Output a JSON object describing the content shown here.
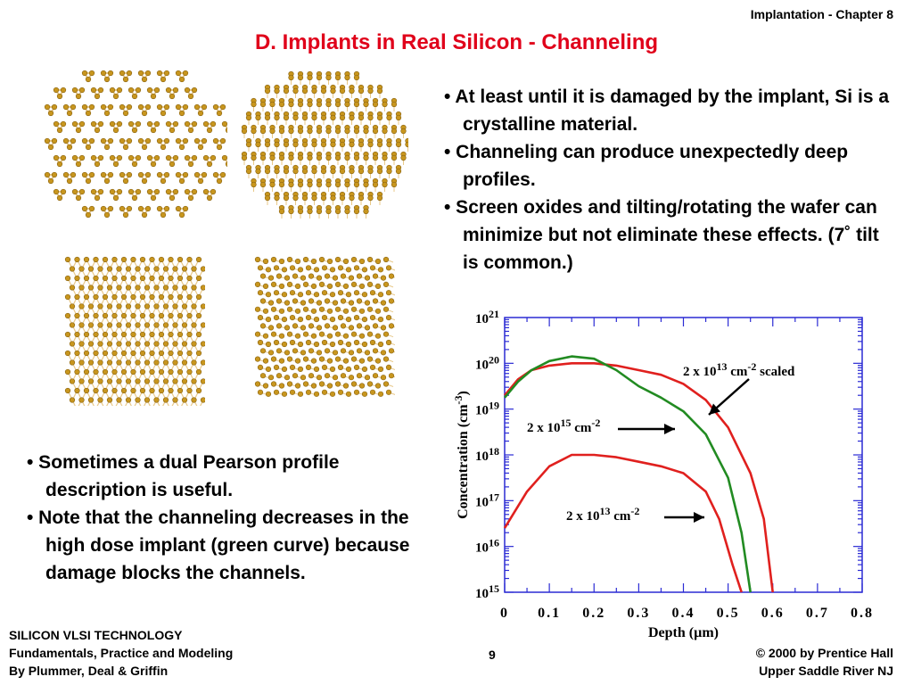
{
  "header": {
    "chapter": "Implantation - Chapter 8"
  },
  "title": "D. Implants in Real Silicon - Channeling",
  "bullets_right": [
    "• At least until it is damaged by the implant, Si is a crystalline material.",
    "• Channeling can produce unexpectedly deep profiles.",
    "• Screen oxides and tilting/rotating the wafer can minimize but not eliminate these effects. (7˚ tilt is common.)"
  ],
  "bullets_left": [
    "• Sometimes a dual Pearson profile description is useful.",
    "• Note that the channeling decreases in the high dose implant (green curve) because damage blocks the channels."
  ],
  "footer": {
    "left_lines": [
      "SILICON VLSI TECHNOLOGY",
      "Fundamentals, Practice and Modeling",
      "By Plummer, Deal & Griffin"
    ],
    "page": "9",
    "right_lines": [
      "© 2000 by Prentice Hall",
      "Upper Saddle River NJ"
    ]
  },
  "lattice_images": [
    {
      "name": "lattice-view-110",
      "color": "#c8961e"
    },
    {
      "name": "lattice-view-tilted-1",
      "color": "#c8961e"
    },
    {
      "name": "lattice-view-100",
      "color": "#c8961e"
    },
    {
      "name": "lattice-view-tilted-2",
      "color": "#c8961e"
    }
  ],
  "chart_data": {
    "type": "line",
    "xlabel": "Depth   (µm)",
    "ylabel": "Concentration  (cm-3)",
    "xlim": [
      0,
      0.8
    ],
    "ylim_log10": [
      15,
      21
    ],
    "yscale": "log",
    "x_ticks": [
      "0",
      "0.1",
      "0.2",
      "0.3",
      "0.4",
      "0.5",
      "0.6",
      "0.7",
      "0.8"
    ],
    "y_ticks": [
      {
        "base": "10",
        "exp": "21",
        "value": 21
      },
      {
        "base": "10",
        "exp": "20",
        "value": 20
      },
      {
        "base": "10",
        "exp": "19",
        "value": 19
      },
      {
        "base": "10",
        "exp": "18",
        "value": 18
      },
      {
        "base": "10",
        "exp": "17",
        "value": 17
      },
      {
        "base": "10",
        "exp": "16",
        "value": 16
      },
      {
        "base": "10",
        "exp": "15",
        "value": 15
      }
    ],
    "series": [
      {
        "name": "2 x 10^13 cm^-2 scaled",
        "color": "#e0201e",
        "points": [
          [
            0,
            19.3
          ],
          [
            0.03,
            19.65
          ],
          [
            0.06,
            19.85
          ],
          [
            0.1,
            19.95
          ],
          [
            0.15,
            20.0
          ],
          [
            0.2,
            20.0
          ],
          [
            0.25,
            19.95
          ],
          [
            0.3,
            19.85
          ],
          [
            0.35,
            19.75
          ],
          [
            0.4,
            19.55
          ],
          [
            0.45,
            19.2
          ],
          [
            0.5,
            18.6
          ],
          [
            0.55,
            17.6
          ],
          [
            0.58,
            16.6
          ],
          [
            0.6,
            15.0
          ]
        ]
      },
      {
        "name": "2 x 10^15 cm^-2",
        "color": "#228b22",
        "points": [
          [
            0,
            19.25
          ],
          [
            0.03,
            19.6
          ],
          [
            0.06,
            19.85
          ],
          [
            0.1,
            20.05
          ],
          [
            0.15,
            20.15
          ],
          [
            0.2,
            20.1
          ],
          [
            0.25,
            19.85
          ],
          [
            0.3,
            19.5
          ],
          [
            0.35,
            19.25
          ],
          [
            0.4,
            18.95
          ],
          [
            0.45,
            18.45
          ],
          [
            0.5,
            17.5
          ],
          [
            0.53,
            16.3
          ],
          [
            0.55,
            15.0
          ]
        ]
      },
      {
        "name": "2 x 10^13 cm^-2",
        "color": "#e0201e",
        "points": [
          [
            0,
            16.4
          ],
          [
            0.05,
            17.2
          ],
          [
            0.1,
            17.75
          ],
          [
            0.15,
            18.0
          ],
          [
            0.2,
            18.0
          ],
          [
            0.25,
            17.95
          ],
          [
            0.3,
            17.85
          ],
          [
            0.35,
            17.75
          ],
          [
            0.4,
            17.6
          ],
          [
            0.45,
            17.2
          ],
          [
            0.48,
            16.6
          ],
          [
            0.51,
            15.6
          ],
          [
            0.53,
            15.0
          ]
        ]
      }
    ],
    "annotations": [
      {
        "base": "2 x 10",
        "exp": "13",
        "unit": " cm",
        "unit_exp": "-2",
        "suffix": " scaled"
      },
      {
        "base": "2 x 10",
        "exp": "15",
        "unit": " cm",
        "unit_exp": "-2",
        "suffix": ""
      },
      {
        "base": "2 x 10",
        "exp": "13",
        "unit": " cm",
        "unit_exp": "-2",
        "suffix": ""
      }
    ]
  }
}
